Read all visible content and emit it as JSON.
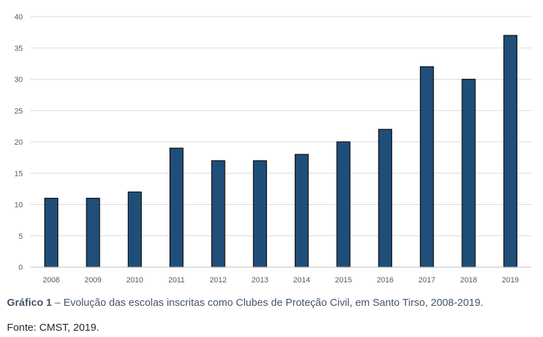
{
  "chart_data": {
    "type": "bar",
    "categories": [
      "2008",
      "2009",
      "2010",
      "2011",
      "2012",
      "2013",
      "2014",
      "2015",
      "2016",
      "2017",
      "2018",
      "2019"
    ],
    "values": [
      11,
      11,
      12,
      19,
      17,
      17,
      18,
      20,
      22,
      32,
      30,
      37
    ],
    "ylim": [
      0,
      40
    ],
    "yticks": [
      0,
      5,
      10,
      15,
      20,
      25,
      30,
      35,
      40
    ],
    "grid": true,
    "bar_color": "#1f4e79",
    "bar_edge_color": "#0d0d0d"
  },
  "caption": {
    "label": "Gráfico 1",
    "text": " – Evolução das escolas inscritas como Clubes de Proteção Civil, em Santo Tirso, 2008-2019."
  },
  "source": "Fonte: CMST, 2019."
}
